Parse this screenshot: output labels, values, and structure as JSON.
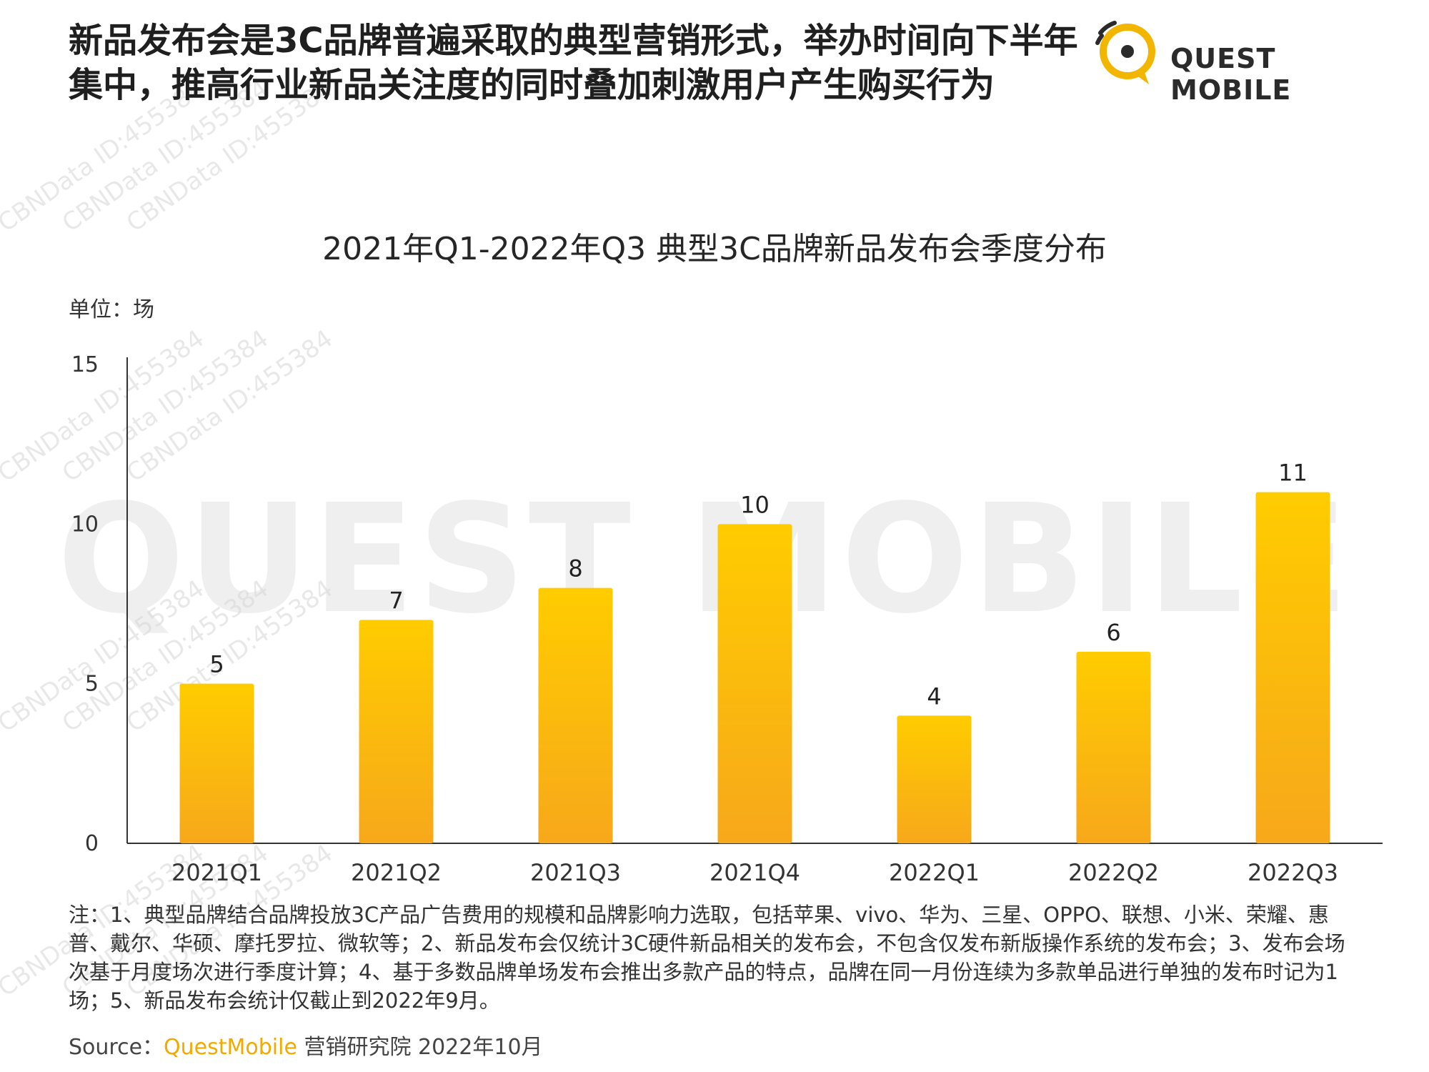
{
  "header": {
    "headline": "新品发布会是3C品牌普遍采取的典型营销形式，举办时间向下半年集中，推高行业新品关注度的同时叠加刺激用户产生购买行为",
    "logo_text": "QUEST MOBILE"
  },
  "watermark": {
    "text": "CBNData ID:455384",
    "background_logo_text": "QUEST MOBILE"
  },
  "chart_data": {
    "type": "bar",
    "title": "2021年Q1-2022年Q3 典型3C品牌新品发布会季度分布",
    "unit_label": "单位：场",
    "categories": [
      "2021Q1",
      "2021Q2",
      "2021Q3",
      "2021Q4",
      "2022Q1",
      "2022Q2",
      "2022Q3"
    ],
    "values": [
      5,
      7,
      8,
      10,
      4,
      6,
      11
    ],
    "ylim": [
      0,
      15
    ],
    "yticks": [
      0,
      5,
      10,
      15
    ],
    "grid": false,
    "bar_color_top": "#ffcc00",
    "bar_color_bottom": "#f7a81b"
  },
  "footer": {
    "notes": "注：1、典型品牌结合品牌投放3C产品广告费用的规模和品牌影响力选取，包括苹果、vivo、华为、三星、OPPO、联想、小米、荣耀、惠普、戴尔、华硕、摩托罗拉、微软等；2、新品发布会仅统计3C硬件新品相关的发布会，不包含仅发布新版操作系统的发布会；3、发布会场次基于月度场次进行季度计算；4、基于多数品牌单场发布会推出多款产品的特点，品牌在同一月份连续为多款单品进行单独的发布时记为1场；5、新品发布会统计仅截止到2022年9月。",
    "source_prefix": "Source：",
    "source_brand": "QuestMobile",
    "source_suffix": " 营销研究院 2022年10月"
  },
  "colors": {
    "brand": "#f2a900",
    "text": "#222222"
  }
}
